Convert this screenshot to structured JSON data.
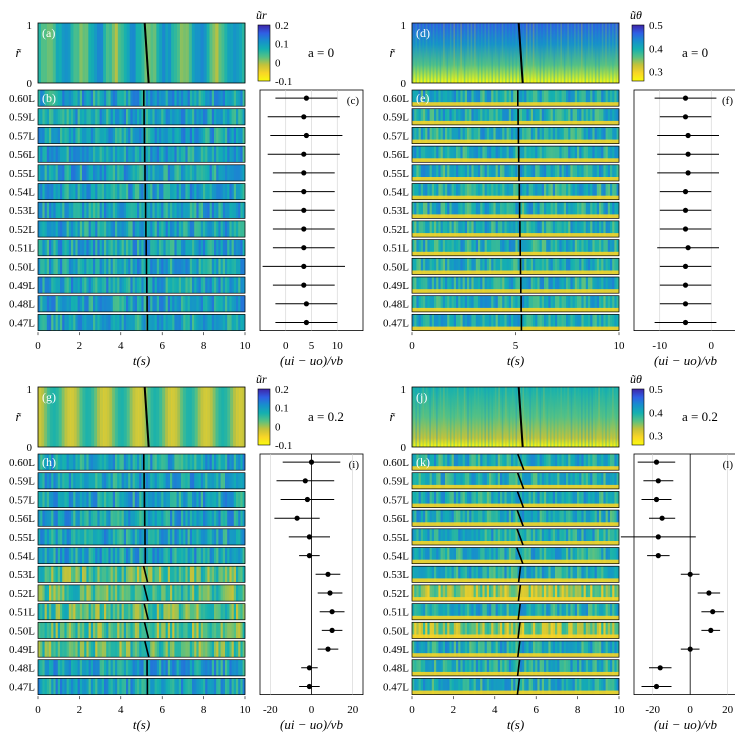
{
  "figure": {
    "colors": {
      "cmap": [
        "#3e26a8",
        "#2f5ee4",
        "#178fcc",
        "#14b0b0",
        "#56c184",
        "#c4c23a",
        "#f9d526",
        "#f9fb0e"
      ],
      "fit_line": "#000000",
      "marker": "#000000",
      "grid": "#d0d0d0"
    }
  },
  "chart_data": [
    {
      "id": "top-left",
      "type": "heatmap",
      "quantity": "ur",
      "a_label": "a = 0",
      "colorbar": {
        "title": "ũr",
        "ticks": [
          "0.2",
          "0.1",
          "0",
          "-0.1"
        ],
        "range": [
          -0.1,
          0.2
        ]
      },
      "main_panel": {
        "letter": "(a)",
        "ylabel": "r̃",
        "yticks": [
          "1",
          "0"
        ]
      },
      "strip_panel_letter": "(b)",
      "errorbar_panel": {
        "letter": "(c)",
        "xlabel": "(ui − uo)/vb",
        "xticks": [
          "0",
          "5",
          "10"
        ],
        "xlim": [
          -5,
          15
        ],
        "values": [
          4,
          3.5,
          4,
          3.5,
          3.5,
          3.5,
          3.5,
          3.5,
          3.5,
          3.5,
          3.5,
          4,
          4
        ],
        "errors": [
          6,
          7,
          7,
          7,
          6,
          6,
          6,
          6,
          6,
          8,
          6,
          6,
          6
        ]
      },
      "strips": [
        "0.60L",
        "0.59L",
        "0.57L",
        "0.56L",
        "0.55L",
        "0.54L",
        "0.53L",
        "0.52L",
        "0.51L",
        "0.50L",
        "0.49L",
        "0.48L",
        "0.47L"
      ],
      "time_axis": {
        "label": "t(s)",
        "ticks": [
          "0",
          "2",
          "4",
          "6",
          "8",
          "10"
        ],
        "range": [
          0,
          10
        ]
      }
    },
    {
      "id": "top-right",
      "type": "heatmap",
      "quantity": "uθ",
      "a_label": "a = 0",
      "colorbar": {
        "title": "ũθ",
        "ticks": [
          "0.5",
          "0.4",
          "0.3"
        ],
        "range": [
          0.26,
          0.5
        ]
      },
      "main_panel": {
        "letter": "(d)",
        "ylabel": "r̃",
        "yticks": [
          "1",
          "0"
        ]
      },
      "strip_panel_letter": "(e)",
      "errorbar_panel": {
        "letter": "(f)",
        "xlabel": "(ui − uo)/vb",
        "xticks": [
          "-10",
          "0"
        ],
        "xlim": [
          -15,
          5
        ],
        "values": [
          -5,
          -5,
          -4.5,
          -4.5,
          -4.5,
          -5,
          -5,
          -5,
          -4.5,
          -5,
          -5,
          -5,
          -5
        ],
        "errors": [
          6,
          5,
          6,
          6,
          6,
          5,
          5,
          5,
          6,
          5,
          5,
          5,
          6
        ]
      },
      "strips": [
        "0.60L",
        "0.59L",
        "0.57L",
        "0.56L",
        "0.55L",
        "0.54L",
        "0.53L",
        "0.52L",
        "0.51L",
        "0.50L",
        "0.49L",
        "0.48L",
        "0.47L"
      ],
      "time_axis": {
        "label": "t(s)",
        "ticks": [
          "0",
          "5",
          "10"
        ],
        "range": [
          0,
          10
        ]
      }
    },
    {
      "id": "bottom-left",
      "type": "heatmap",
      "quantity": "ur",
      "a_label": "a = 0.2",
      "colorbar": {
        "title": "ũr",
        "ticks": [
          "0.2",
          "0.1",
          "0",
          "-0.1"
        ],
        "range": [
          -0.1,
          0.2
        ]
      },
      "main_panel": {
        "letter": "(g)",
        "ylabel": "r̃",
        "yticks": [
          "1",
          "0"
        ]
      },
      "strip_panel_letter": "(h)",
      "errorbar_panel": {
        "letter": "(i)",
        "xlabel": "(ui − uo)/vb",
        "xticks": [
          "-20",
          "0",
          "20"
        ],
        "xlim": [
          -25,
          25
        ],
        "values": [
          0,
          -3,
          -2,
          -7,
          -1,
          -1,
          8,
          9,
          10,
          10,
          8,
          -1,
          -1
        ],
        "errors": [
          14,
          14,
          13,
          11,
          10,
          5,
          6,
          6,
          6,
          5,
          5,
          4,
          5
        ]
      },
      "strips": [
        "0.60L",
        "0.59L",
        "0.57L",
        "0.56L",
        "0.55L",
        "0.54L",
        "0.53L",
        "0.52L",
        "0.51L",
        "0.50L",
        "0.49L",
        "0.48L",
        "0.47L"
      ],
      "time_axis": {
        "label": "t(s)",
        "ticks": [
          "0",
          "2",
          "4",
          "6",
          "8",
          "10"
        ],
        "range": [
          0,
          10
        ]
      }
    },
    {
      "id": "bottom-right",
      "type": "heatmap",
      "quantity": "uθ",
      "a_label": "a = 0.2",
      "colorbar": {
        "title": "ũθ",
        "ticks": [
          "0.5",
          "0.4",
          "0.3"
        ],
        "range": [
          0.26,
          0.5
        ]
      },
      "main_panel": {
        "letter": "(j)",
        "ylabel": "r̃",
        "yticks": [
          "1",
          "0"
        ]
      },
      "strip_panel_letter": "(k)",
      "errorbar_panel": {
        "letter": "(l)",
        "xlabel": "(ui − uo)/vb",
        "xticks": [
          "-20",
          "0",
          "20"
        ],
        "xlim": [
          -30,
          25
        ],
        "values": [
          -18,
          -17,
          -18,
          -15,
          -17,
          -17,
          0,
          10,
          12,
          11,
          0,
          -16,
          -18
        ],
        "errors": [
          10,
          8,
          8,
          7,
          20,
          6,
          5,
          6,
          6,
          5,
          5,
          6,
          8
        ]
      },
      "strips": [
        "0.60L",
        "0.59L",
        "0.57L",
        "0.56L",
        "0.55L",
        "0.54L",
        "0.53L",
        "0.52L",
        "0.51L",
        "0.50L",
        "0.49L",
        "0.48L",
        "0.47L"
      ],
      "time_axis": {
        "label": "t(s)",
        "ticks": [
          "0",
          "2",
          "4",
          "6",
          "8",
          "10"
        ],
        "range": [
          0,
          10
        ]
      }
    }
  ]
}
